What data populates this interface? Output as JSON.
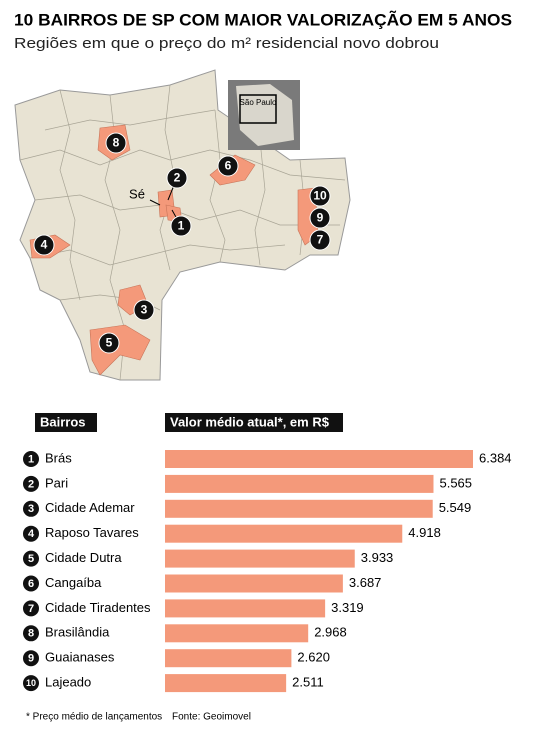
{
  "chart_data": {
    "type": "bar",
    "title": "10 BAIRROS DE SP COM MAIOR VALORIZAÇÃO EM 5 ANOS",
    "subtitle": "Regiões em que o preço do m² residencial novo dobrou",
    "category_header": "Bairros",
    "value_header": "Valor médio atual*, em R$",
    "ranks": [
      1,
      2,
      3,
      4,
      5,
      6,
      7,
      8,
      9,
      10
    ],
    "categories": [
      "Brás",
      "Pari",
      "Cidade Ademar",
      "Raposo Tavares",
      "Cidade Dutra",
      "Cangaíba",
      "Cidade Tiradentes",
      "Brasilândia",
      "Guaianases",
      "Lajeado"
    ],
    "values": [
      6384,
      5565,
      5549,
      4918,
      3933,
      3687,
      3319,
      2968,
      2620,
      2511
    ],
    "value_labels": [
      "6.384",
      "5.565",
      "5.549",
      "4.918",
      "3.933",
      "3.687",
      "3.319",
      "2.968",
      "2.620",
      "2.511"
    ],
    "color": "#f4997a",
    "footnote": "* Preço médio de lançamentos",
    "source": "Fonte: Geoimovel"
  },
  "map": {
    "inset_label": "São Paulo",
    "center_label": "Sé"
  }
}
